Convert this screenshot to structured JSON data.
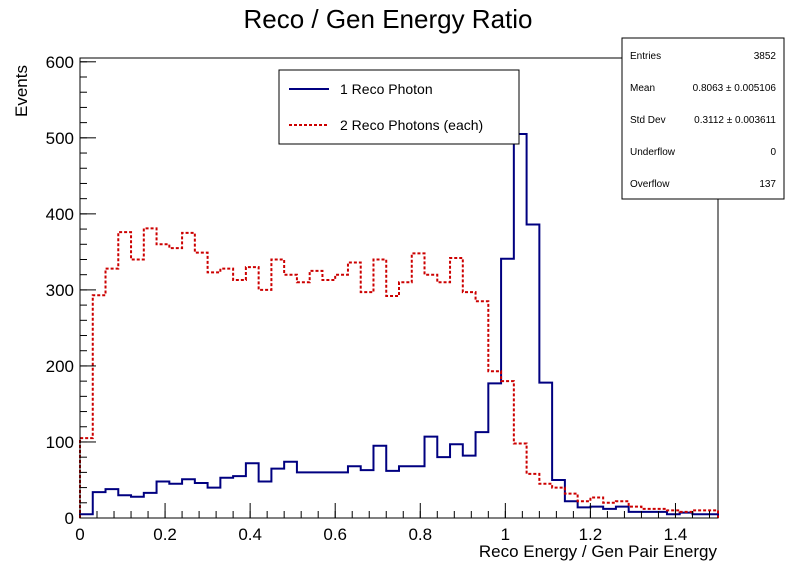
{
  "chart_data": {
    "type": "histogram",
    "title": "Reco / Gen Energy Ratio",
    "xlabel": "Reco Energy / Gen Pair Energy",
    "ylabel": "Events",
    "xlim": [
      0,
      1.5
    ],
    "ylim": [
      0,
      605
    ],
    "bin_width": 0.03,
    "x_ticks": [
      0,
      0.2,
      0.4,
      0.6,
      0.8,
      1,
      1.2,
      1.4
    ],
    "x_tick_labels": [
      "0",
      "0.2",
      "0.4",
      "0.6",
      "0.8",
      "1",
      "1.2",
      "1.4"
    ],
    "y_ticks": [
      0,
      100,
      200,
      300,
      400,
      500,
      600
    ],
    "y_tick_labels": [
      "0",
      "100",
      "200",
      "300",
      "400",
      "500",
      "600"
    ],
    "series": [
      {
        "name": "1 Reco Photon",
        "color": "#000080",
        "style": "solid",
        "values": [
          5,
          34,
          38,
          30,
          28,
          33,
          48,
          45,
          51,
          46,
          40,
          53,
          55,
          72,
          48,
          65,
          74,
          60,
          60,
          60,
          60,
          68,
          63,
          95,
          62,
          68,
          68,
          107,
          80,
          97,
          82,
          113,
          177,
          341,
          505,
          386,
          178,
          50,
          22,
          14,
          15,
          12,
          15,
          8,
          8,
          8,
          5,
          7,
          5,
          5
        ]
      },
      {
        "name": "2 Reco Photons (each)",
        "color": "#cc0000",
        "style": "dotted",
        "values": [
          105,
          293,
          328,
          376,
          340,
          381,
          360,
          355,
          375,
          349,
          323,
          328,
          313,
          330,
          300,
          340,
          320,
          310,
          325,
          313,
          320,
          336,
          297,
          340,
          292,
          310,
          348,
          320,
          310,
          342,
          297,
          285,
          193,
          180,
          98,
          58,
          45,
          40,
          32,
          22,
          27,
          20,
          22,
          15,
          12,
          12,
          10,
          8,
          10,
          10
        ]
      }
    ],
    "legend": {
      "position": "top-center",
      "entries": [
        "1 Reco Photon",
        "2 Reco Photons (each)"
      ]
    },
    "stats_box": {
      "position": "top-right",
      "rows": [
        {
          "label": "Entries",
          "value": "3852"
        },
        {
          "label": "Mean",
          "value": "0.8063 ± 0.005106"
        },
        {
          "label": "Std Dev",
          "value": "0.3112 ± 0.003611"
        },
        {
          "label": "Underflow",
          "value": "0"
        },
        {
          "label": "Overflow",
          "value": "137"
        }
      ]
    },
    "grid": false
  }
}
